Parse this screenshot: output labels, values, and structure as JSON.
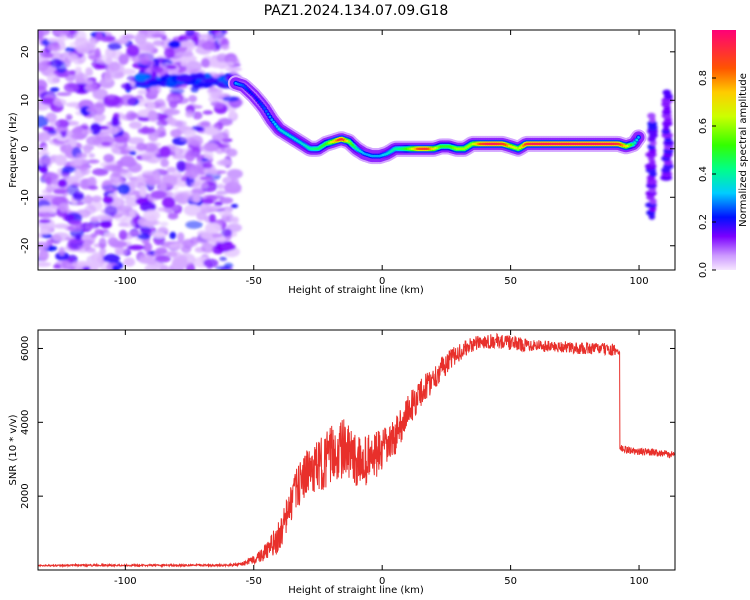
{
  "title": "PAZ1.2024.134.07.09.G18",
  "chart_data": [
    {
      "type": "heatmap",
      "xlabel": "Height of straight line (km)",
      "ylabel": "Frequency (Hz)",
      "xlim": [
        -134,
        114
      ],
      "ylim": [
        -25,
        24.5
      ],
      "xticks": [
        -100,
        -50,
        0,
        50,
        100
      ],
      "yticks": [
        -20,
        -10,
        0,
        10,
        20
      ],
      "colorbar": {
        "label": "Normalized spectral amplitude",
        "range": [
          0,
          1
        ],
        "ticks": [
          0.0,
          0.2,
          0.4,
          0.6,
          0.8
        ]
      },
      "noise_region_x": [
        -134,
        -57
      ],
      "signal_track": {
        "x": [
          -57,
          -54,
          -50,
          -46,
          -43,
          -40,
          -37,
          -34,
          -31,
          -28,
          -25,
          -22,
          -19,
          -16,
          -13,
          -10,
          -7,
          -4,
          -1,
          2,
          5,
          8,
          11,
          14,
          17,
          20,
          23,
          26,
          29,
          32,
          35,
          38,
          41,
          44,
          47,
          50,
          53,
          56,
          59,
          62,
          65,
          68,
          71,
          74,
          77,
          80,
          83,
          86,
          89,
          92,
          95,
          98,
          100
        ],
        "y": [
          13.5,
          13,
          11,
          8.5,
          6,
          4,
          3,
          2,
          1,
          0,
          0,
          1,
          1.5,
          2,
          1.5,
          0,
          -1,
          -1.5,
          -1.5,
          -1,
          0,
          0,
          0,
          0,
          0,
          0,
          0.5,
          0.5,
          0,
          0,
          1,
          1,
          1,
          1,
          1,
          0.5,
          0,
          1,
          1,
          1,
          1,
          1,
          1,
          1,
          1,
          1,
          1,
          1,
          1,
          1,
          0.5,
          1,
          2.5
        ],
        "amplitude": [
          0.3,
          0.25,
          0.2,
          0.25,
          0.3,
          0.35,
          0.35,
          0.35,
          0.35,
          0.4,
          0.45,
          0.5,
          0.7,
          0.95,
          0.6,
          0.4,
          0.3,
          0.3,
          0.3,
          0.35,
          0.4,
          0.45,
          0.6,
          0.85,
          0.9,
          0.7,
          0.5,
          0.5,
          0.6,
          0.6,
          0.6,
          0.85,
          0.95,
          0.95,
          0.9,
          0.7,
          0.6,
          0.9,
          0.95,
          0.95,
          0.95,
          0.95,
          0.95,
          0.95,
          0.95,
          0.95,
          0.95,
          0.95,
          0.95,
          0.9,
          0.7,
          0.4,
          0.3
        ]
      },
      "noise_band_y": 14,
      "edge_streaks": [
        {
          "x_center": 105,
          "y_range": [
            -14,
            7
          ]
        },
        {
          "x_center": 111,
          "y_range": [
            -6,
            12
          ]
        }
      ]
    },
    {
      "type": "line",
      "xlabel": "Height of straight line (km)",
      "ylabel": "SNR (10 * v/v)",
      "xlim": [
        -134,
        114
      ],
      "ylim": [
        0,
        6500
      ],
      "xticks": [
        -100,
        -50,
        0,
        50,
        100
      ],
      "yticks": [
        2000,
        4000,
        6000
      ],
      "color": "#e8302b",
      "x": [
        -134,
        -110,
        -90,
        -70,
        -60,
        -55,
        -50,
        -45,
        -40,
        -37,
        -34,
        -30,
        -25,
        -20,
        -15,
        -10,
        -5,
        0,
        5,
        10,
        15,
        20,
        25,
        30,
        35,
        40,
        45,
        50,
        55,
        60,
        65,
        70,
        75,
        80,
        85,
        90,
        92,
        92.5,
        95,
        100,
        105,
        110,
        114
      ],
      "y": [
        120,
        130,
        125,
        130,
        130,
        150,
        280,
        500,
        900,
        1500,
        2100,
        2600,
        2800,
        3100,
        3300,
        2900,
        3000,
        3200,
        3600,
        4300,
        4800,
        5200,
        5600,
        5900,
        6100,
        6200,
        6200,
        6150,
        6100,
        6100,
        6050,
        6050,
        6000,
        6000,
        6000,
        5950,
        5900,
        3300,
        3250,
        3200,
        3200,
        3150,
        3100
      ],
      "noise_amplitude": [
        20,
        25,
        25,
        25,
        25,
        40,
        120,
        250,
        450,
        500,
        550,
        600,
        700,
        800,
        800,
        700,
        700,
        600,
        500,
        450,
        400,
        350,
        300,
        250,
        200,
        200,
        200,
        200,
        180,
        170,
        160,
        160,
        160,
        160,
        160,
        160,
        160,
        100,
        100,
        100,
        100,
        100,
        100
      ]
    }
  ]
}
